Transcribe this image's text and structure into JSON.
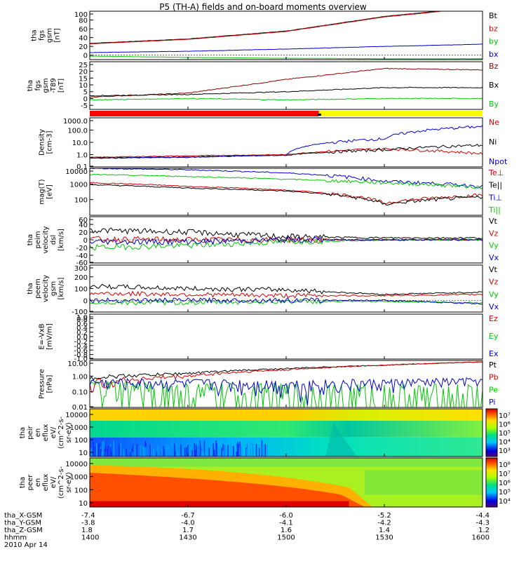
{
  "title": "P5 (TH-A) fields and on-board moments overview",
  "date_label": "2010 Apr 14",
  "colors": {
    "black": "#000000",
    "red": "#d40000",
    "darkred": "#8a0000",
    "green": "#00c800",
    "blue": "#0000d0",
    "yellow": "#ffff00"
  },
  "chart_data": [
    {
      "type": "line",
      "panel": "fgs",
      "ylabel": [
        "tha",
        "fgs",
        "gsm",
        "[nT]"
      ],
      "ylim": [
        -10,
        100
      ],
      "yticks": [
        0,
        20,
        40,
        60,
        80,
        100
      ],
      "tick_labels": [
        "0",
        "20",
        "40",
        "60",
        "80",
        "100"
      ],
      "x": [
        "1400",
        "1430",
        "1500",
        "1530",
        "1600"
      ],
      "series": [
        {
          "name": "Bt",
          "color": "#000000",
          "values": [
            27,
            37,
            55,
            88,
            110
          ]
        },
        {
          "name": "bz",
          "color": "#d40000",
          "values": [
            26,
            36,
            54,
            87,
            109
          ]
        },
        {
          "name": "by",
          "color": "#00c800",
          "values": [
            -2,
            -5,
            -7,
            -8,
            -8
          ]
        },
        {
          "name": "bx",
          "color": "#0000d0",
          "values": [
            6,
            9,
            14,
            20,
            25
          ]
        }
      ]
    },
    {
      "type": "line",
      "panel": "fgs-t89",
      "ylabel": [
        "tha",
        "fgs",
        "gsm",
        "-T89",
        "[nT]"
      ],
      "ylim": [
        -8,
        27
      ],
      "yticks": [
        -5,
        0,
        5,
        10,
        15,
        20,
        25
      ],
      "tick_labels": [
        "-5",
        "0",
        "5",
        "10",
        "15",
        "20",
        "25"
      ],
      "x": [
        "1400",
        "1430",
        "1500",
        "1530",
        "1600"
      ],
      "series": [
        {
          "name": "Bz",
          "color": "#8a0000",
          "values": [
            1,
            4,
            14,
            22,
            21
          ]
        },
        {
          "name": "Bx",
          "color": "#000000",
          "values": [
            2,
            3,
            5,
            8,
            8
          ]
        },
        {
          "name": "By",
          "color": "#00c800",
          "values": [
            -1,
            0,
            -1,
            0,
            0
          ]
        }
      ]
    },
    {
      "type": "bar",
      "panel": "mode-bar",
      "segments": [
        {
          "from": "1400",
          "to": "1510",
          "color": "#ff0000"
        },
        {
          "from": "1510",
          "to": "1600",
          "color": "#ffff00"
        }
      ]
    },
    {
      "type": "line",
      "panel": "density",
      "scale": "log",
      "ylabel": [
        "Density",
        "[cm-3]"
      ],
      "ylim": [
        0.1,
        1000
      ],
      "tick_labels": [
        "1000.0",
        "100.0",
        "10.0",
        "1.0",
        "0.1"
      ],
      "x": [
        "1400",
        "1430",
        "1500",
        "1530",
        "1600"
      ],
      "series": [
        {
          "name": "Ne",
          "color": "#d40000",
          "values": [
            0.6,
            0.8,
            1.0,
            3.0,
            1.2
          ]
        },
        {
          "name": "Ni",
          "color": "#000000",
          "values": [
            0.55,
            0.65,
            0.9,
            2.5,
            6
          ]
        },
        {
          "name": "Npot",
          "color": "#0000d0",
          "values": [
            0.5,
            0.6,
            0.9,
            20,
            200
          ]
        }
      ]
    },
    {
      "type": "line",
      "panel": "temperature",
      "scale": "log",
      "ylabel": [
        "mag(T)",
        "[eV]"
      ],
      "ylim": [
        10,
        10000
      ],
      "tick_labels": [
        "10000",
        "1000",
        "100"
      ],
      "x": [
        "1400",
        "1430",
        "1500",
        "1530",
        "1600"
      ],
      "series": [
        {
          "name": "Te⊥",
          "color": "#d40000",
          "values": [
            1200,
            700,
            400,
            60,
            200
          ]
        },
        {
          "name": "Te||",
          "color": "#000000",
          "values": [
            900,
            550,
            350,
            50,
            150
          ]
        },
        {
          "name": "Ti⊥",
          "color": "#0000d0",
          "values": [
            10000,
            8000,
            5000,
            1500,
            700
          ]
        },
        {
          "name": "Ti||",
          "color": "#00c800",
          "values": [
            4000,
            3000,
            2000,
            1200,
            600
          ]
        }
      ]
    },
    {
      "type": "line",
      "panel": "peim-velocity",
      "ylabel": [
        "tha",
        "peim",
        "velocity",
        "dsl",
        "[km/s]"
      ],
      "ylim": [
        -60,
        60
      ],
      "tick_labels": [
        "60",
        "40",
        "20",
        "0",
        "-20",
        "-40",
        "-60"
      ],
      "x": [
        "1400",
        "1430",
        "1500",
        "1530",
        "1600"
      ],
      "series": [
        {
          "name": "Vt",
          "color": "#000000",
          "values": [
            25,
            20,
            8,
            5,
            5
          ]
        },
        {
          "name": "Vz",
          "color": "#d40000",
          "values": [
            2,
            0,
            0,
            0,
            0
          ]
        },
        {
          "name": "Vy",
          "color": "#00c800",
          "values": [
            -20,
            -15,
            -5,
            0,
            0
          ]
        },
        {
          "name": "Vx",
          "color": "#0000d0",
          "values": [
            -5,
            -5,
            0,
            0,
            0
          ]
        }
      ]
    },
    {
      "type": "line",
      "panel": "peem-velocity",
      "ylabel": [
        "tha",
        "peem",
        "velocity",
        "gsm",
        "[km/s]"
      ],
      "ylim": [
        -100,
        300
      ],
      "tick_labels": [
        "300",
        "200",
        "100",
        "0",
        "-100"
      ],
      "x": [
        "1400",
        "1430",
        "1500",
        "1530",
        "1600"
      ],
      "series": [
        {
          "name": "Vt",
          "color": "#000000",
          "values": [
            120,
            100,
            90,
            50,
            70
          ]
        },
        {
          "name": "Vz",
          "color": "#d40000",
          "values": [
            60,
            50,
            40,
            40,
            50
          ]
        },
        {
          "name": "Vy",
          "color": "#00c800",
          "values": [
            -20,
            -20,
            -10,
            -10,
            -20
          ]
        },
        {
          "name": "Vx",
          "color": "#0000d0",
          "values": [
            0,
            0,
            0,
            0,
            -30
          ]
        }
      ]
    },
    {
      "type": "line",
      "panel": "exb",
      "ylabel": [
        "E=-VxB",
        "[mV/m]"
      ],
      "ylim": [
        -1,
        1
      ],
      "tick_labels": [
        "1.0",
        "0.8",
        "0.6",
        "0.4",
        "0.2",
        "0.0",
        "-0.2",
        "-0.4",
        "-0.6",
        "-0.8",
        "-1.0"
      ],
      "series": [
        {
          "name": "Ez",
          "color": "#d40000"
        },
        {
          "name": "Ey",
          "color": "#00c800"
        },
        {
          "name": "Ex",
          "color": "#0000d0"
        }
      ]
    },
    {
      "type": "line",
      "panel": "pressure",
      "scale": "log",
      "ylabel": [
        "Pressure",
        "[nPa]"
      ],
      "ylim": [
        0.01,
        10
      ],
      "tick_labels": [
        "10.00",
        "1.00",
        "0.10",
        "0.01"
      ],
      "x": [
        "1400",
        "1430",
        "1500",
        "1530",
        "1600"
      ],
      "series": [
        {
          "name": "Pt",
          "color": "#000000",
          "values": [
            0.8,
            1.5,
            3,
            5,
            8
          ]
        },
        {
          "name": "Pb",
          "color": "#d40000",
          "values": [
            0.3,
            1.0,
            2.5,
            5,
            8
          ]
        },
        {
          "name": "Pe",
          "color": "#00c800",
          "values": [
            0.2,
            0.07,
            0.04,
            0.025,
            0.025
          ]
        },
        {
          "name": "Pi",
          "color": "#0000d0",
          "values": [
            0.4,
            0.35,
            0.3,
            0.35,
            0.5
          ]
        }
      ]
    },
    {
      "type": "heatmap",
      "panel": "peir",
      "ylabel": [
        "tha",
        "peir",
        "en",
        "eflux",
        "eV/",
        "(cm^2-s-",
        "sr-eV)"
      ],
      "ylim": [
        7,
        20000
      ],
      "tick_labels": [
        "10000",
        "1000",
        "100",
        "10"
      ],
      "colorbar_labels": [
        "10⁷",
        "10⁶",
        "10⁵",
        "10⁴",
        "10³"
      ]
    },
    {
      "type": "heatmap",
      "panel": "peer",
      "ylabel": [
        "tha",
        "peer",
        "en",
        "eflux",
        "eV/",
        "(cm^2-s-",
        "sr-eV)"
      ],
      "ylim": [
        7,
        20000
      ],
      "tick_labels": [
        "10000",
        "1000",
        "100",
        "10"
      ],
      "colorbar_labels": [
        "10⁸",
        "10⁷",
        "10⁶",
        "10⁵",
        "10⁴"
      ]
    }
  ],
  "ephemeris": {
    "rows": [
      {
        "label": "tha_X-GSM",
        "values": [
          "-7.4",
          "-6.7",
          "-6.0",
          "-5.2",
          "-4.4"
        ]
      },
      {
        "label": "tha_Y-GSM",
        "values": [
          "-3.8",
          "-4.0",
          "-4.1",
          "-4.2",
          "-4.3"
        ]
      },
      {
        "label": "tha_Z-GSM",
        "values": [
          "1.8",
          "1.7",
          "1.6",
          "1.4",
          "1.2"
        ]
      },
      {
        "label": "hhmm",
        "values": [
          "1400",
          "1430",
          "1500",
          "1530",
          "1600"
        ]
      }
    ]
  }
}
